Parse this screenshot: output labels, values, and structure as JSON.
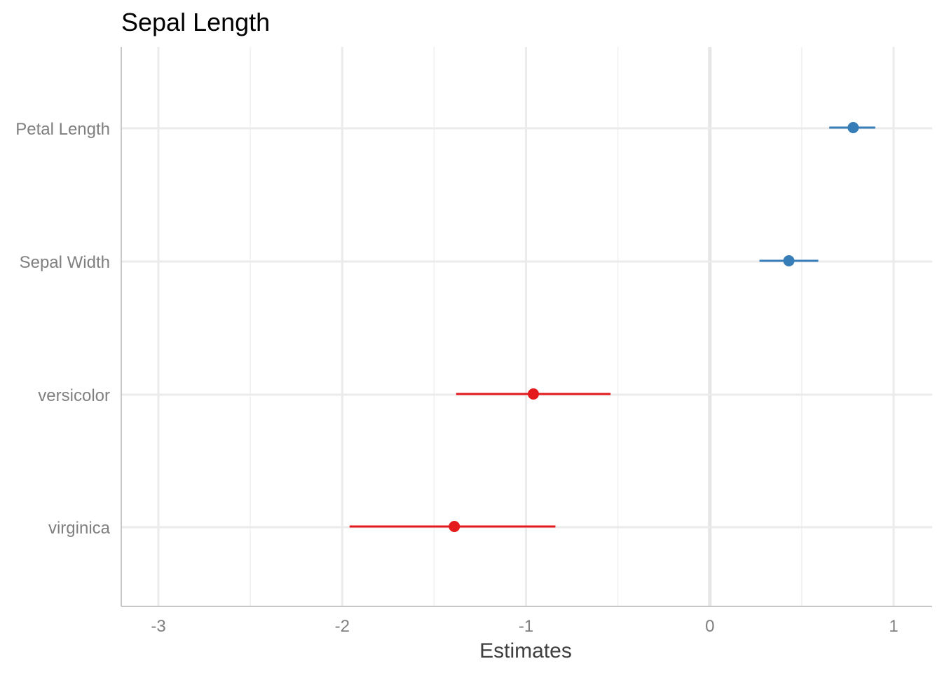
{
  "chart_data": {
    "type": "scatter",
    "title": "Sepal Length",
    "xlabel": "Estimates",
    "ylabel": "",
    "xlim": [
      -3.2,
      1.2
    ],
    "xticks": [
      -3,
      -2,
      -1,
      0,
      1
    ],
    "xtick_labels": [
      "-3",
      "-2",
      "-1",
      "0",
      "1"
    ],
    "grid": true,
    "legend": "none",
    "categories": [
      "Petal Length",
      "Sepal Width",
      "versicolor",
      "virginica"
    ],
    "estimates": [
      0.78,
      0.43,
      -0.96,
      -1.39
    ],
    "ci_low": [
      0.65,
      0.27,
      -1.38,
      -1.96
    ],
    "ci_high": [
      0.9,
      0.59,
      -0.54,
      -0.84
    ],
    "colors": [
      "#377eb8",
      "#377eb8",
      "#e41a1c",
      "#e41a1c"
    ]
  }
}
